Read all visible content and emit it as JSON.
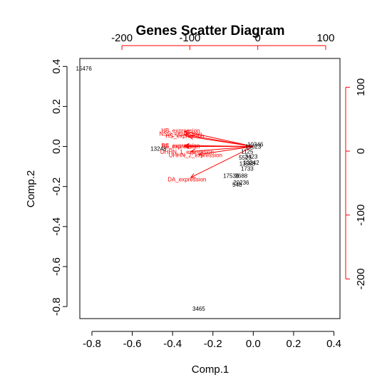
{
  "chart_data": {
    "type": "scatter",
    "title": "Genes Scatter Diagram",
    "xlabel": "Comp.1",
    "ylabel": "Comp.2",
    "xlim": [
      -0.86,
      0.43
    ],
    "ylim": [
      -0.86,
      0.44
    ],
    "x_ticks": [
      "-0.8",
      "-0.6",
      "-0.4",
      "-0.2",
      "0.0",
      "0.2",
      "0.4"
    ],
    "x_tick_values": [
      -0.8,
      -0.6,
      -0.4,
      -0.2,
      0.0,
      0.2,
      0.4
    ],
    "y_ticks": [
      "0.4",
      "0.2",
      "0.0",
      "-0.2",
      "-0.4",
      "-0.6",
      "-0.8"
    ],
    "y_tick_values": [
      0.4,
      0.2,
      0.0,
      -0.2,
      -0.4,
      -0.6,
      -0.8
    ],
    "top_ticks": [
      "-200",
      "-100",
      "0",
      "100"
    ],
    "top_tick_values": [
      -200,
      -100,
      0,
      100
    ],
    "right_ticks": [
      "100",
      "0",
      "-100",
      "-200"
    ],
    "right_tick_values": [
      100,
      0,
      -100,
      -200
    ],
    "secondary_lim": {
      "x": [
        -262,
        121
      ],
      "y": [
        -262,
        145
      ]
    },
    "grid": false,
    "arrow_color": "#ff0000",
    "point_color": "#000000",
    "points": [
      {
        "label": "15476",
        "x": -0.84,
        "y": 0.39
      },
      {
        "label": "3465",
        "x": -0.27,
        "y": -0.81
      },
      {
        "label": "13248",
        "x": -0.47,
        "y": -0.01
      },
      {
        "label": "17536",
        "x": -0.11,
        "y": -0.145
      },
      {
        "label": "3688",
        "x": -0.06,
        "y": -0.145
      },
      {
        "label": "20236",
        "x": -0.06,
        "y": -0.18
      },
      {
        "label": "548",
        "x": -0.08,
        "y": -0.19
      },
      {
        "label": "1733",
        "x": -0.03,
        "y": -0.11
      },
      {
        "label": "13588",
        "x": -0.03,
        "y": -0.085
      },
      {
        "label": "13242",
        "x": -0.01,
        "y": -0.08
      },
      {
        "label": "5523",
        "x": -0.04,
        "y": -0.055
      },
      {
        "label": "3423",
        "x": -0.01,
        "y": -0.05
      },
      {
        "label": "1125",
        "x": -0.03,
        "y": -0.025
      },
      {
        "label": "19023",
        "x": 0.0,
        "y": 0.0
      },
      {
        "label": "10346",
        "x": 0.01,
        "y": 0.01
      }
    ],
    "arrows": [
      {
        "label": "HB_expression",
        "x": -0.34,
        "y": 0.075
      },
      {
        "label": "NSC_expression",
        "x": -0.34,
        "y": 0.06
      },
      {
        "label": "HS_expression",
        "x": -0.32,
        "y": 0.05
      },
      {
        "label": "PS_expression",
        "x": -0.34,
        "y": 0.005
      },
      {
        "label": "R5_expression",
        "x": -0.34,
        "y": 0.0
      },
      {
        "label": "UHHN_1_expression",
        "x": -0.31,
        "y": -0.025
      },
      {
        "label": "UHHN_2_expression",
        "x": -0.27,
        "y": -0.04
      },
      {
        "label": "DA_expression",
        "x": -0.31,
        "y": -0.155
      }
    ]
  }
}
